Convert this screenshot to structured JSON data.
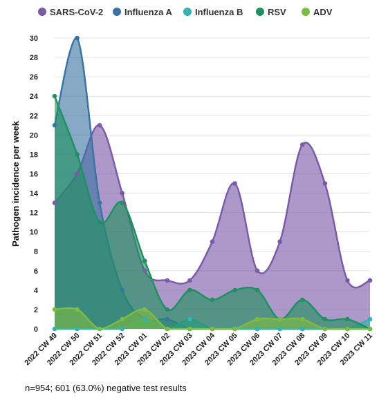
{
  "chart_data": {
    "type": "area",
    "ylabel": "Pathogen incidence per week",
    "xlabel": "",
    "ylim": [
      0,
      30
    ],
    "yticks": [
      0,
      2,
      4,
      6,
      8,
      10,
      12,
      14,
      16,
      18,
      20,
      22,
      24,
      26,
      28,
      30
    ],
    "grid": true,
    "legend_position": "top",
    "categories": [
      "2022 CW 49",
      "2022 CW 50",
      "2022 CW 51",
      "2022 CW 52",
      "2023 CW 01",
      "2023 CW 02",
      "2023 CW 03",
      "2023 CW 04",
      "2023 CW 05",
      "2023 CW 06",
      "2023 CW 07",
      "2023 CW 08",
      "2023 CW 09",
      "2023 CW 10",
      "2023 CW 11"
    ],
    "series": [
      {
        "name": "SARS-CoV-2",
        "color": "#7b5ba8",
        "values": [
          13,
          16,
          21,
          14,
          6,
          5,
          5,
          9,
          15,
          6,
          9,
          19,
          15,
          5,
          5
        ]
      },
      {
        "name": "Influenza A",
        "color": "#3b74a3",
        "values": [
          21,
          30,
          13,
          4,
          1,
          1,
          0,
          0,
          0,
          0,
          0,
          0,
          0,
          0,
          0
        ]
      },
      {
        "name": "Influenza B",
        "color": "#35b3b0",
        "values": [
          0,
          0,
          0,
          0,
          1,
          0,
          1,
          0,
          0,
          0,
          0,
          0,
          0,
          0,
          1
        ]
      },
      {
        "name": "RSV",
        "color": "#1f9060",
        "values": [
          24,
          18,
          11,
          13,
          7,
          2,
          4,
          3,
          4,
          4,
          1,
          3,
          1,
          1,
          0
        ]
      },
      {
        "name": "ADV",
        "color": "#7dbb42",
        "values": [
          2,
          2,
          0,
          1,
          2,
          0,
          0,
          0,
          0,
          1,
          1,
          1,
          0,
          0,
          0
        ]
      }
    ]
  },
  "footnote": "n=954; 601 (63.0%) negative test results"
}
